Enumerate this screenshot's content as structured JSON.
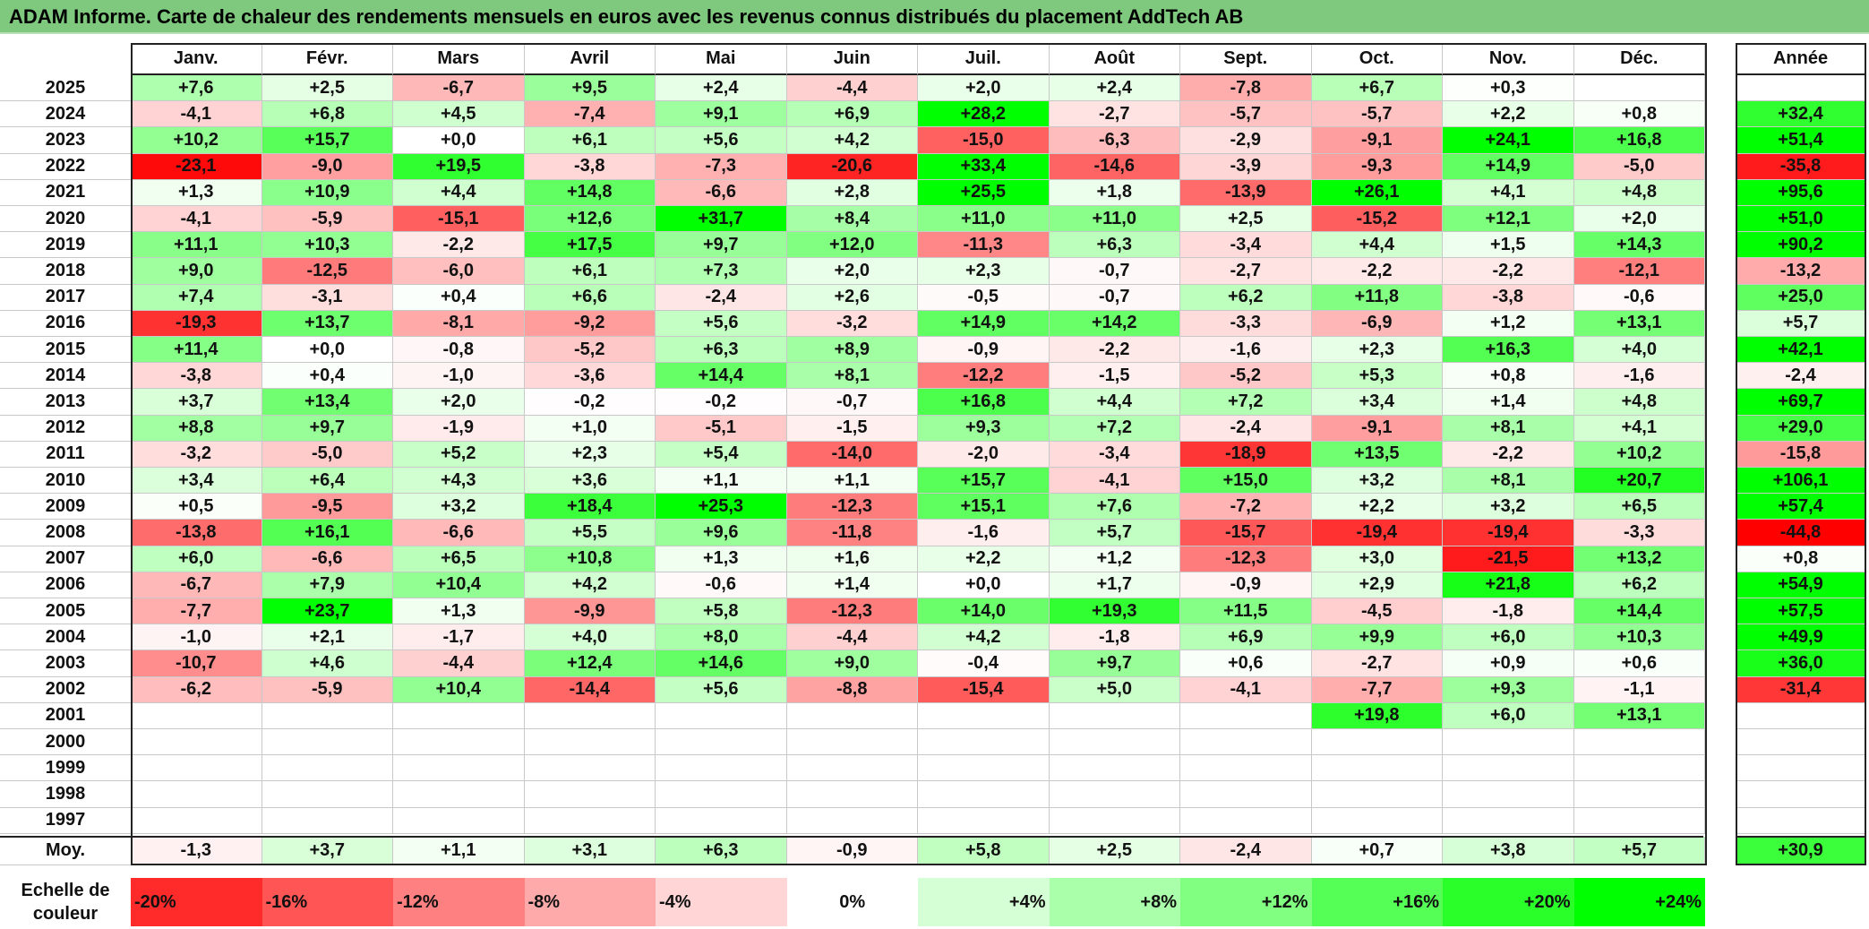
{
  "title": "ADAM Informe. Carte de chaleur des rendements mensuels en euros avec les revenus connus distribués du placement AddTech AB",
  "months": [
    "Janv.",
    "Févr.",
    "Mars",
    "Avril",
    "Mai",
    "Juin",
    "Juil.",
    "Août",
    "Sept.",
    "Oct.",
    "Nov.",
    "Déc."
  ],
  "annual_header": "Année",
  "average_label": "Moy.",
  "scale_label_line1": "Echelle de",
  "scale_label_line2": "couleur",
  "colors": {
    "red": "#ff0000",
    "white": "#ffffff",
    "green": "#00ff00",
    "title_bg": "#7ec97e"
  },
  "rows": [
    {
      "year": "2025",
      "values": [
        "+7,6",
        "+2,5",
        "-6,7",
        "+9,5",
        "+2,4",
        "-4,4",
        "+2,0",
        "+2,4",
        "-7,8",
        "+6,7",
        "+0,3",
        ""
      ],
      "annual": ""
    },
    {
      "year": "2024",
      "values": [
        "-4,1",
        "+6,8",
        "+4,5",
        "-7,4",
        "+9,1",
        "+6,9",
        "+28,2",
        "-2,7",
        "-5,7",
        "-5,7",
        "+2,2",
        "+0,8"
      ],
      "annual": "+32,4"
    },
    {
      "year": "2023",
      "values": [
        "+10,2",
        "+15,7",
        "+0,0",
        "+6,1",
        "+5,6",
        "+4,2",
        "-15,0",
        "-6,3",
        "-2,9",
        "-9,1",
        "+24,1",
        "+16,8"
      ],
      "annual": "+51,4"
    },
    {
      "year": "2022",
      "values": [
        "-23,1",
        "-9,0",
        "+19,5",
        "-3,8",
        "-7,3",
        "-20,6",
        "+33,4",
        "-14,6",
        "-3,9",
        "-9,3",
        "+14,9",
        "-5,0"
      ],
      "annual": "-35,8"
    },
    {
      "year": "2021",
      "values": [
        "+1,3",
        "+10,9",
        "+4,4",
        "+14,8",
        "-6,6",
        "+2,8",
        "+25,5",
        "+1,8",
        "-13,9",
        "+26,1",
        "+4,1",
        "+4,8"
      ],
      "annual": "+95,6"
    },
    {
      "year": "2020",
      "values": [
        "-4,1",
        "-5,9",
        "-15,1",
        "+12,6",
        "+31,7",
        "+8,4",
        "+11,0",
        "+11,0",
        "+2,5",
        "-15,2",
        "+12,1",
        "+2,0"
      ],
      "annual": "+51,0"
    },
    {
      "year": "2019",
      "values": [
        "+11,1",
        "+10,3",
        "-2,2",
        "+17,5",
        "+9,7",
        "+12,0",
        "-11,3",
        "+6,3",
        "-3,4",
        "+4,4",
        "+1,5",
        "+14,3"
      ],
      "annual": "+90,2"
    },
    {
      "year": "2018",
      "values": [
        "+9,0",
        "-12,5",
        "-6,0",
        "+6,1",
        "+7,3",
        "+2,0",
        "+2,3",
        "-0,7",
        "-2,7",
        "-2,2",
        "-2,2",
        "-12,1"
      ],
      "annual": "-13,2"
    },
    {
      "year": "2017",
      "values": [
        "+7,4",
        "-3,1",
        "+0,4",
        "+6,6",
        "-2,4",
        "+2,6",
        "-0,5",
        "-0,7",
        "+6,2",
        "+11,8",
        "-3,8",
        "-0,6"
      ],
      "annual": "+25,0"
    },
    {
      "year": "2016",
      "values": [
        "-19,3",
        "+13,7",
        "-8,1",
        "-9,2",
        "+5,6",
        "-3,2",
        "+14,9",
        "+14,2",
        "-3,3",
        "-6,9",
        "+1,2",
        "+13,1"
      ],
      "annual": "+5,7"
    },
    {
      "year": "2015",
      "values": [
        "+11,4",
        "+0,0",
        "-0,8",
        "-5,2",
        "+6,3",
        "+8,9",
        "-0,9",
        "-2,2",
        "-1,6",
        "+2,3",
        "+16,3",
        "+4,0"
      ],
      "annual": "+42,1"
    },
    {
      "year": "2014",
      "values": [
        "-3,8",
        "+0,4",
        "-1,0",
        "-3,6",
        "+14,4",
        "+8,1",
        "-12,2",
        "-1,5",
        "-5,2",
        "+5,3",
        "+0,8",
        "-1,6"
      ],
      "annual": "-2,4"
    },
    {
      "year": "2013",
      "values": [
        "+3,7",
        "+13,4",
        "+2,0",
        "-0,2",
        "-0,2",
        "-0,7",
        "+16,8",
        "+4,4",
        "+7,2",
        "+3,4",
        "+1,4",
        "+4,8"
      ],
      "annual": "+69,7"
    },
    {
      "year": "2012",
      "values": [
        "+8,8",
        "+9,7",
        "-1,9",
        "+1,0",
        "-5,1",
        "-1,5",
        "+9,3",
        "+7,2",
        "-2,4",
        "-9,1",
        "+8,1",
        "+4,1"
      ],
      "annual": "+29,0"
    },
    {
      "year": "2011",
      "values": [
        "-3,2",
        "-5,0",
        "+5,2",
        "+2,3",
        "+5,4",
        "-14,0",
        "-2,0",
        "-3,4",
        "-18,9",
        "+13,5",
        "-2,2",
        "+10,2"
      ],
      "annual": "-15,8"
    },
    {
      "year": "2010",
      "values": [
        "+3,4",
        "+6,4",
        "+4,3",
        "+3,6",
        "+1,1",
        "+1,1",
        "+15,7",
        "-4,1",
        "+15,0",
        "+3,2",
        "+8,1",
        "+20,7"
      ],
      "annual": "+106,1"
    },
    {
      "year": "2009",
      "values": [
        "+0,5",
        "-9,5",
        "+3,2",
        "+18,4",
        "+25,3",
        "-12,3",
        "+15,1",
        "+7,6",
        "-7,2",
        "+2,2",
        "+3,2",
        "+6,5"
      ],
      "annual": "+57,4"
    },
    {
      "year": "2008",
      "values": [
        "-13,8",
        "+16,1",
        "-6,6",
        "+5,5",
        "+9,6",
        "-11,8",
        "-1,6",
        "+5,7",
        "-15,7",
        "-19,4",
        "-19,4",
        "-3,3"
      ],
      "annual": "-44,8"
    },
    {
      "year": "2007",
      "values": [
        "+6,0",
        "-6,6",
        "+6,5",
        "+10,8",
        "+1,3",
        "+1,6",
        "+2,2",
        "+1,2",
        "-12,3",
        "+3,0",
        "-21,5",
        "+13,2"
      ],
      "annual": "+0,8"
    },
    {
      "year": "2006",
      "values": [
        "-6,7",
        "+7,9",
        "+10,4",
        "+4,2",
        "-0,6",
        "+1,4",
        "+0,0",
        "+1,7",
        "-0,9",
        "+2,9",
        "+21,8",
        "+6,2"
      ],
      "annual": "+54,9"
    },
    {
      "year": "2005",
      "values": [
        "-7,7",
        "+23,7",
        "+1,3",
        "-9,9",
        "+5,8",
        "-12,3",
        "+14,0",
        "+19,3",
        "+11,5",
        "-4,5",
        "-1,8",
        "+14,4"
      ],
      "annual": "+57,5"
    },
    {
      "year": "2004",
      "values": [
        "-1,0",
        "+2,1",
        "-1,7",
        "+4,0",
        "+8,0",
        "-4,4",
        "+4,2",
        "-1,8",
        "+6,9",
        "+9,9",
        "+6,0",
        "+10,3"
      ],
      "annual": "+49,9"
    },
    {
      "year": "2003",
      "values": [
        "-10,7",
        "+4,6",
        "-4,4",
        "+12,4",
        "+14,6",
        "+9,0",
        "-0,4",
        "+9,7",
        "+0,6",
        "-2,7",
        "+0,9",
        "+0,6"
      ],
      "annual": "+36,0"
    },
    {
      "year": "2002",
      "values": [
        "-6,2",
        "-5,9",
        "+10,4",
        "-14,4",
        "+5,6",
        "-8,8",
        "-15,4",
        "+5,0",
        "-4,1",
        "-7,7",
        "+9,3",
        "-1,1"
      ],
      "annual": "-31,4"
    },
    {
      "year": "2001",
      "values": [
        "",
        "",
        "",
        "",
        "",
        "",
        "",
        "",
        "",
        "+19,8",
        "+6,0",
        "+13,1"
      ],
      "annual": ""
    },
    {
      "year": "2000",
      "values": [
        "",
        "",
        "",
        "",
        "",
        "",
        "",
        "",
        "",
        "",
        "",
        ""
      ],
      "annual": ""
    },
    {
      "year": "1999",
      "values": [
        "",
        "",
        "",
        "",
        "",
        "",
        "",
        "",
        "",
        "",
        "",
        ""
      ],
      "annual": ""
    },
    {
      "year": "1998",
      "values": [
        "",
        "",
        "",
        "",
        "",
        "",
        "",
        "",
        "",
        "",
        "",
        ""
      ],
      "annual": ""
    },
    {
      "year": "1997",
      "values": [
        "",
        "",
        "",
        "",
        "",
        "",
        "",
        "",
        "",
        "",
        "",
        ""
      ],
      "annual": ""
    }
  ],
  "averages": [
    "-1,3",
    "+3,7",
    "+1,1",
    "+3,1",
    "+6,3",
    "-0,9",
    "+5,8",
    "+2,5",
    "-2,4",
    "+0,7",
    "+3,8",
    "+5,7"
  ],
  "average_annual": "+30,9",
  "scale": [
    "-20%",
    "-16%",
    "-12%",
    "-8%",
    "-4%",
    "0%",
    "+4%",
    "+8%",
    "+12%",
    "+16%",
    "+20%",
    "+24%"
  ]
}
